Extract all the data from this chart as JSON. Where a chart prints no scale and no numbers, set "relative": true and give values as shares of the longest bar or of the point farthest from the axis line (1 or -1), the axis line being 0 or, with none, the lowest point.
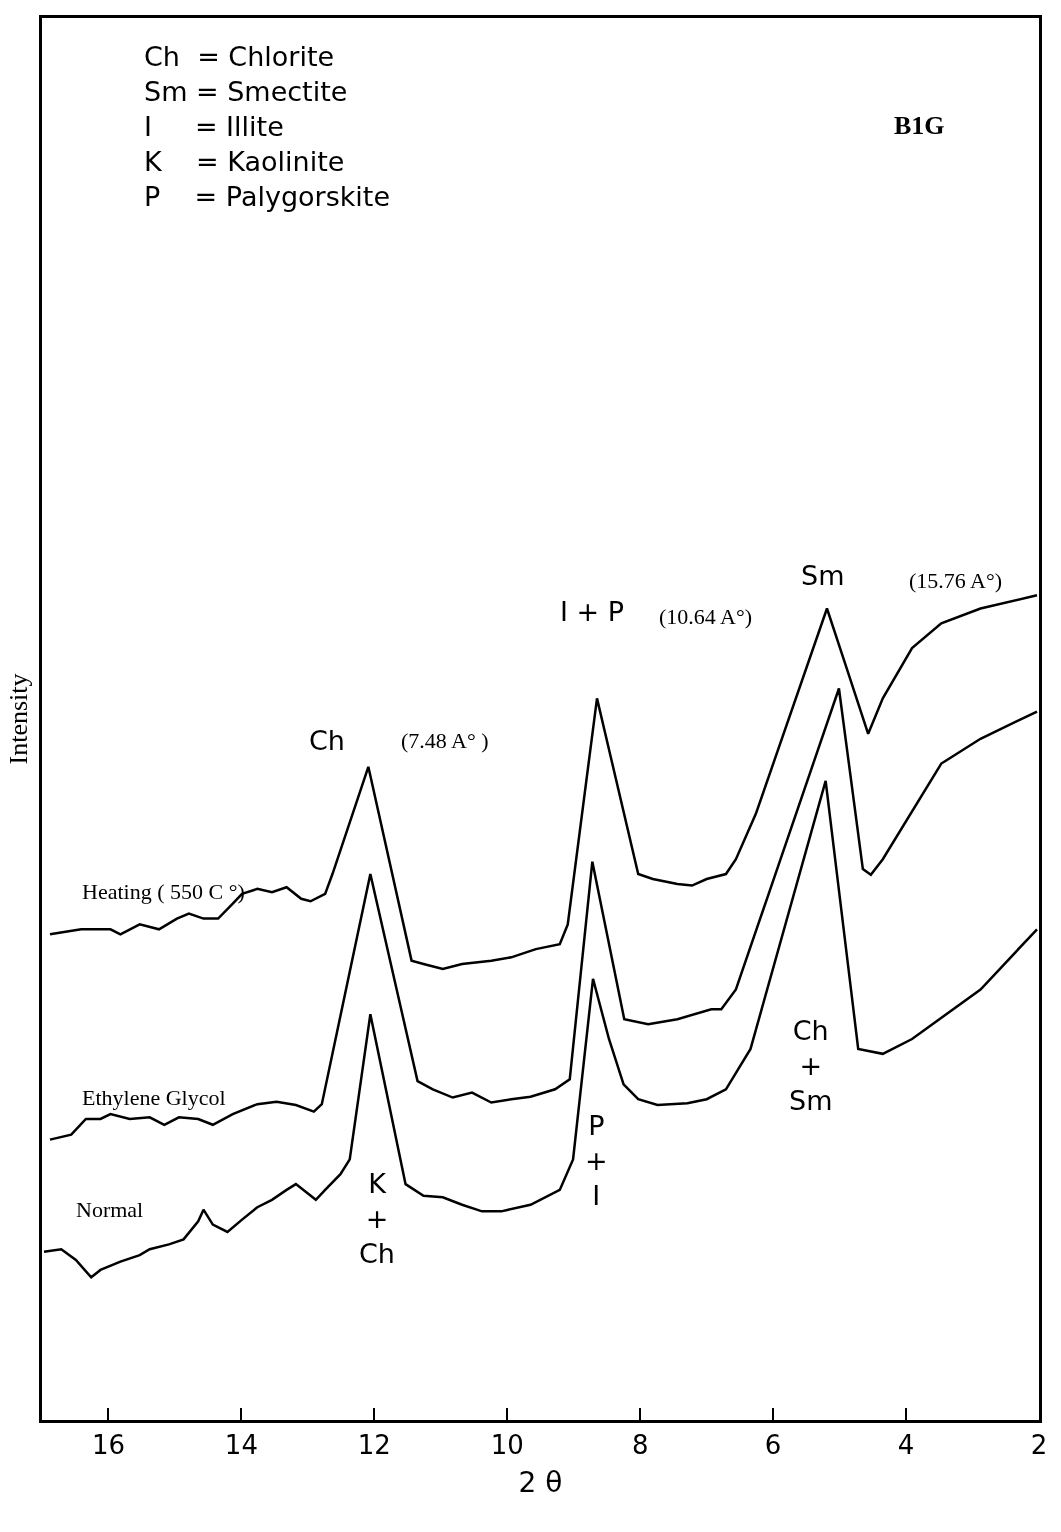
{
  "chart_data": {
    "type": "line",
    "relative": true,
    "xlabel": "2 θ",
    "ylabel": "Intensity",
    "xlim": [
      17,
      2
    ],
    "xticks": [
      16,
      14,
      12,
      10,
      8,
      6,
      4,
      2
    ],
    "grid": false,
    "legend": false,
    "series": [
      {
        "name": "Heating ( 550 C °)",
        "color": "#000000",
        "x": [
          16.88,
          16.41,
          15.97,
          15.82,
          15.53,
          15.24,
          14.97,
          14.79,
          14.57,
          14.35,
          14.13,
          13.99,
          13.76,
          13.54,
          13.32,
          13.1,
          12.96,
          12.74,
          12.63,
          12.09,
          11.44,
          11.26,
          10.97,
          10.68,
          10.24,
          9.94,
          9.57,
          9.21,
          9.09,
          8.65,
          8.03,
          7.81,
          7.44,
          7.22,
          7.0,
          6.71,
          6.56,
          6.26,
          5.19,
          4.94,
          4.57,
          4.35,
          3.91,
          3.47,
          2.88,
          2.03
        ],
        "values": [
          0.589,
          0.595,
          0.595,
          0.589,
          0.601,
          0.595,
          0.608,
          0.614,
          0.608,
          0.608,
          0.626,
          0.638,
          0.644,
          0.64,
          0.646,
          0.632,
          0.629,
          0.638,
          0.662,
          0.792,
          0.557,
          0.553,
          0.547,
          0.553,
          0.557,
          0.561,
          0.571,
          0.577,
          0.601,
          0.875,
          0.662,
          0.656,
          0.65,
          0.648,
          0.656,
          0.662,
          0.68,
          0.735,
          0.984,
          0.923,
          0.832,
          0.875,
          0.936,
          0.966,
          0.984,
          1
        ]
      },
      {
        "name": "Ethylene Glycol",
        "color": "#000000",
        "x": [
          16.88,
          16.56,
          16.34,
          16.12,
          15.97,
          15.68,
          15.38,
          15.16,
          14.94,
          14.65,
          14.43,
          14.13,
          13.76,
          13.47,
          13.18,
          12.91,
          12.79,
          12.06,
          11.35,
          11.12,
          10.82,
          10.53,
          10.24,
          9.94,
          9.65,
          9.28,
          9.06,
          8.72,
          8.24,
          7.88,
          7.44,
          6.93,
          6.78,
          6.56,
          5.01,
          4.65,
          4.53,
          4.35,
          3.47,
          2.88,
          2.03
        ],
        "values": [
          0.34,
          0.346,
          0.365,
          0.365,
          0.371,
          0.365,
          0.367,
          0.358,
          0.367,
          0.365,
          0.358,
          0.371,
          0.383,
          0.386,
          0.382,
          0.374,
          0.383,
          0.662,
          0.411,
          0.401,
          0.391,
          0.397,
          0.385,
          0.389,
          0.392,
          0.401,
          0.413,
          0.677,
          0.486,
          0.48,
          0.486,
          0.498,
          0.498,
          0.522,
          0.887,
          0.668,
          0.661,
          0.68,
          0.796,
          0.826,
          0.859
        ]
      },
      {
        "name": "Normal",
        "color": "#000000",
        "x": [
          16.97,
          16.71,
          16.49,
          16.26,
          16.12,
          15.82,
          15.53,
          15.38,
          15.09,
          14.87,
          14.65,
          14.57,
          14.43,
          14.21,
          13.99,
          13.76,
          13.54,
          13.32,
          13.18,
          12.88,
          12.74,
          12.51,
          12.37,
          12.06,
          11.53,
          11.26,
          10.97,
          10.68,
          10.38,
          10.09,
          9.65,
          9.21,
          9.01,
          8.71,
          8.47,
          8.25,
          8.03,
          7.74,
          7.29,
          7.0,
          6.71,
          6.34,
          5.21,
          4.72,
          4.35,
          3.91,
          2.88,
          2.03
        ],
        "values": [
          0.204,
          0.207,
          0.194,
          0.173,
          0.182,
          0.192,
          0.2,
          0.207,
          0.213,
          0.219,
          0.241,
          0.255,
          0.237,
          0.228,
          0.243,
          0.258,
          0.267,
          0.279,
          0.286,
          0.267,
          0.279,
          0.298,
          0.316,
          0.492,
          0.286,
          0.272,
          0.27,
          0.261,
          0.253,
          0.253,
          0.261,
          0.279,
          0.316,
          0.535,
          0.462,
          0.407,
          0.389,
          0.382,
          0.384,
          0.389,
          0.401,
          0.45,
          0.775,
          0.45,
          0.444,
          0.462,
          0.522,
          0.595
        ]
      }
    ],
    "annotations": [
      "Ch  = Chlorite\nSm = Smectite\nI     = Illite\nK    = Kaolinite\nP    = Palygorskite",
      "B1G",
      "Ch",
      "(7.48 A° )",
      "I + P",
      "(10.64 A°)",
      "Sm",
      "(15.76 A°)",
      "K\n+\nCh",
      "P\n+\nI",
      "Ch\n+\nSm"
    ]
  }
}
